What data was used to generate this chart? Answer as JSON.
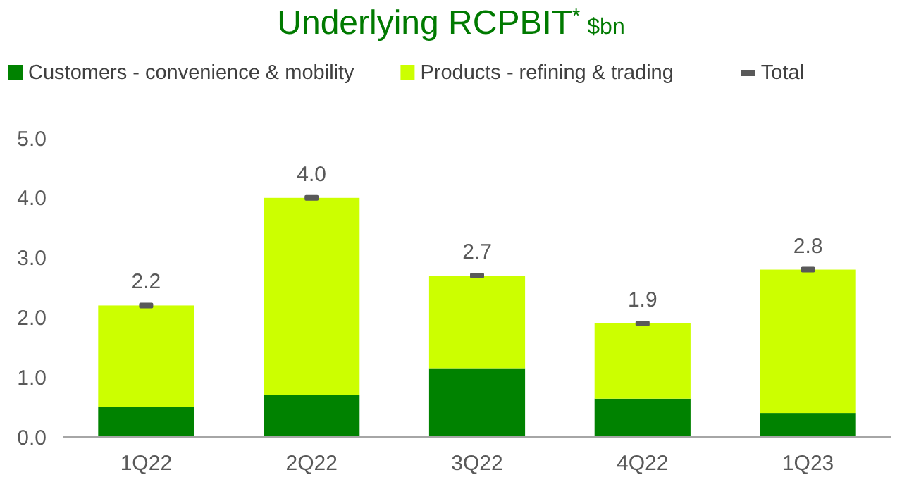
{
  "chart_data": {
    "type": "bar",
    "title": "Underlying RCPBIT$^{*}$",
    "subtitle": "$bn",
    "categories": [
      "1Q22",
      "2Q22",
      "3Q22",
      "4Q22",
      "1Q23"
    ],
    "stacked": true,
    "series": [
      {
        "name": "Customers - convenience & mobility",
        "color": "#008200",
        "values": [
          0.5,
          0.7,
          1.15,
          0.64,
          0.4
        ]
      },
      {
        "name": "Products - refining & trading",
        "color": "#ccff00",
        "values": [
          1.7,
          3.3,
          1.55,
          1.26,
          2.4
        ]
      },
      {
        "name": "Total",
        "type": "scatter",
        "color": "#595959",
        "values": [
          2.2,
          4.0,
          2.7,
          1.9,
          2.8
        ]
      }
    ],
    "totals": [
      "2.2",
      "4.0",
      "2.7",
      "1.9",
      "2.8"
    ],
    "ylim": [
      0,
      5
    ],
    "yticks": [
      {
        "value": 0,
        "label": "0.0"
      },
      {
        "value": 1,
        "label": "1.0"
      },
      {
        "value": 2,
        "label": "2.0"
      },
      {
        "value": 3,
        "label": "3.0"
      },
      {
        "value": 4,
        "label": "4.0"
      },
      {
        "value": 5,
        "label": "5.0"
      }
    ],
    "grid": false,
    "legend": "top"
  }
}
